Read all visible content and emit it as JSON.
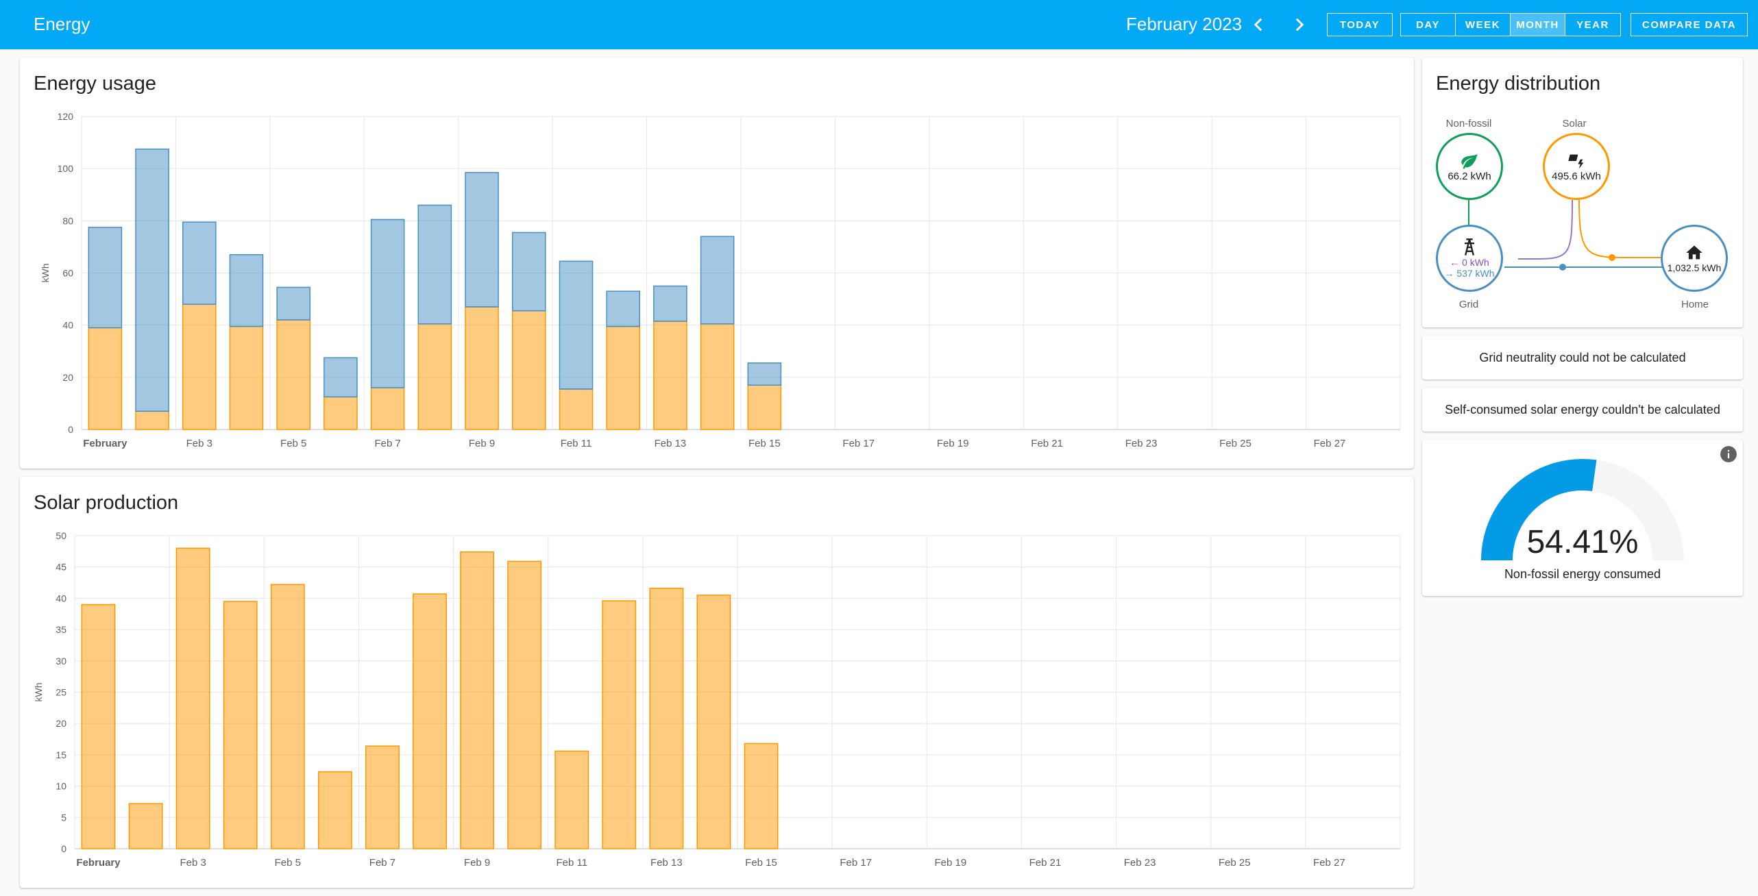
{
  "header": {
    "title": "Energy",
    "period": "February 2023",
    "buttons": {
      "today": "TODAY",
      "day": "DAY",
      "week": "WEEK",
      "month": "MONTH",
      "year": "YEAR",
      "compare": "COMPARE DATA"
    },
    "active_range": "month",
    "icons": {
      "prev": "chevron-left-icon",
      "next": "chevron-right-icon"
    }
  },
  "colors": {
    "header": "#03a9f4",
    "grid_blue": "#488fc2",
    "solar_orange": "#ff9800",
    "non_fossil_green": "#0f9d58",
    "return_purple": "#8353d1",
    "home_blue": "#2a9ae2"
  },
  "energy_usage": {
    "title": "Energy usage"
  },
  "solar_production": {
    "title": "Solar production"
  },
  "chart_data": [
    {
      "type": "bar",
      "stacked": true,
      "title": "Energy usage",
      "ylabel": "kWh",
      "ylim": [
        0,
        120
      ],
      "yticks": [
        0,
        20,
        40,
        60,
        80,
        100,
        120
      ],
      "days": 28,
      "x_tick_labels": [
        "February",
        "Feb 3",
        "Feb 5",
        "Feb 7",
        "Feb 9",
        "Feb 11",
        "Feb 13",
        "Feb 15",
        "Feb 17",
        "Feb 19",
        "Feb 21",
        "Feb 23",
        "Feb 25",
        "Feb 27"
      ],
      "series": [
        {
          "name": "Solar",
          "color": "#ff9800",
          "values": [
            39,
            7,
            48,
            39.5,
            42,
            12.5,
            16,
            40.5,
            47,
            45.5,
            15.5,
            39.5,
            41.5,
            40.5,
            17
          ]
        },
        {
          "name": "Grid",
          "color": "#488fc2",
          "values": [
            38.5,
            100.5,
            31.5,
            27.5,
            12.5,
            15,
            64.5,
            45.5,
            51.5,
            30,
            49,
            13.5,
            13.5,
            33.5,
            8.5
          ]
        }
      ],
      "grid": true
    },
    {
      "type": "bar",
      "title": "Solar production",
      "ylabel": "kWh",
      "ylim": [
        0,
        50
      ],
      "yticks": [
        0,
        5,
        10,
        15,
        20,
        25,
        30,
        35,
        40,
        45,
        50
      ],
      "days": 28,
      "x_tick_labels": [
        "February",
        "Feb 3",
        "Feb 5",
        "Feb 7",
        "Feb 9",
        "Feb 11",
        "Feb 13",
        "Feb 15",
        "Feb 17",
        "Feb 19",
        "Feb 21",
        "Feb 23",
        "Feb 25",
        "Feb 27"
      ],
      "series": [
        {
          "name": "Solar",
          "color": "#ff9800",
          "values": [
            39,
            7.2,
            48,
            39.5,
            42.2,
            12.3,
            16.4,
            40.7,
            47.4,
            45.9,
            15.6,
            39.6,
            41.6,
            40.5,
            16.8
          ]
        }
      ],
      "grid": true
    }
  ],
  "distribution": {
    "title": "Energy distribution",
    "non_fossil": {
      "label": "Non-fossil",
      "value": "66.2 kWh",
      "icon": "leaf-icon"
    },
    "solar": {
      "label": "Solar",
      "value": "495.6 kWh",
      "icon": "solar-power-icon"
    },
    "grid": {
      "label": "Grid",
      "return": "← 0 kWh",
      "consumption": "→ 537 kWh",
      "icon": "transmission-tower-icon"
    },
    "home": {
      "label": "Home",
      "value": "1,032.5 kWh",
      "icon": "home-icon"
    }
  },
  "grid_neutrality": {
    "text": "Grid neutrality could not be calculated"
  },
  "self_consumed": {
    "text": "Self-consumed solar energy couldn't be calculated"
  },
  "gauge": {
    "value": "54.41%",
    "fraction": 0.5441,
    "label": "Non-fossil energy consumed",
    "icon": "info-icon"
  }
}
